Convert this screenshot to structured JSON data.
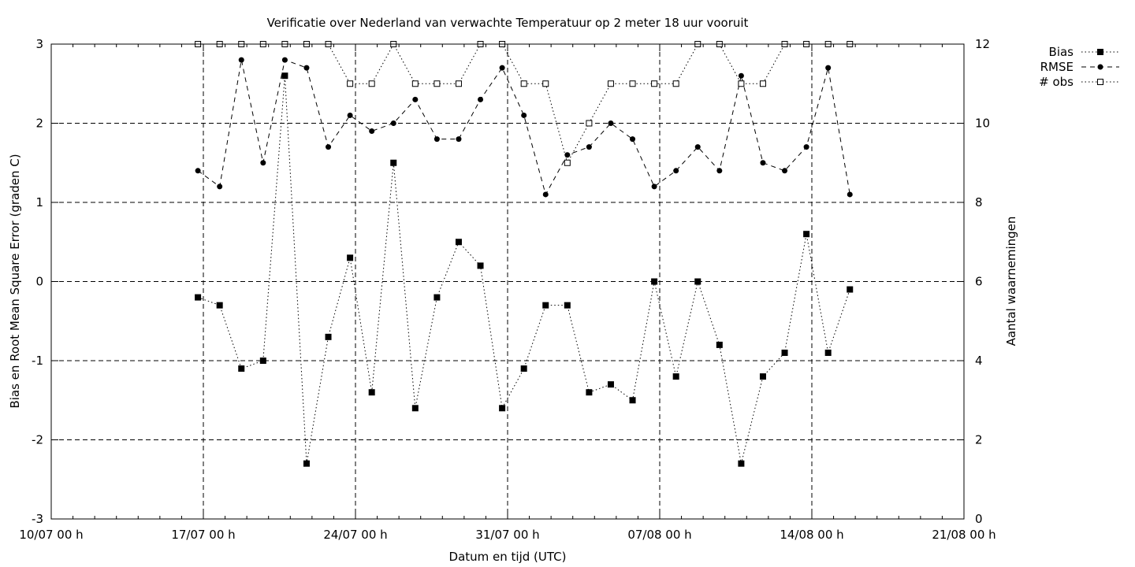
{
  "chart_data": {
    "type": "line",
    "title": "Verificatie over Nederland van verwachte Temperatuur op 2 meter 18 uur vooruit",
    "xlabel": "Datum en tijd (UTC)",
    "ylabel": "Bias en Root Mean Square Error (graden C)",
    "y2label": "Aantal waarnemingen",
    "xlim": [
      "2023-07-10",
      "2023-08-21"
    ],
    "ylim": [
      -3,
      3
    ],
    "y2lim": [
      0,
      12
    ],
    "x_tick_labels": [
      "10/07 00 h",
      "17/07 00 h",
      "24/07 00 h",
      "31/07 00 h",
      "07/08 00 h",
      "14/08 00 h",
      "21/08 00 h"
    ],
    "y_tick_labels": [
      "-3",
      "-2",
      "-1",
      "0",
      "1",
      "2",
      "3"
    ],
    "y2_tick_labels": [
      "0",
      "2",
      "4",
      "6",
      "8",
      "10",
      "12"
    ],
    "grid": true,
    "legend_position": "top-right, outside plot",
    "x": [
      "16/07 18 h",
      "17/07 18 h",
      "18/07 18 h",
      "19/07 18 h",
      "20/07 18 h",
      "21/07 18 h",
      "22/07 18 h",
      "23/07 18 h",
      "24/07 18 h",
      "25/07 18 h",
      "26/07 18 h",
      "27/07 18 h",
      "28/07 18 h",
      "29/07 18 h",
      "30/07 18 h",
      "31/07 18 h",
      "01/08 18 h",
      "02/08 18 h",
      "03/08 18 h",
      "04/08 18 h",
      "05/08 18 h",
      "06/08 18 h",
      "07/08 18 h",
      "08/08 18 h",
      "09/08 18 h",
      "10/08 18 h",
      "11/08 18 h",
      "12/08 18 h",
      "13/08 18 h",
      "14/08 18 h",
      "15/08 18 h"
    ],
    "series": [
      {
        "name": "Bias",
        "axis": "left",
        "style": "dotted line, filled square markers",
        "values": [
          -0.2,
          -0.3,
          -1.1,
          -1.0,
          2.6,
          -2.3,
          -0.7,
          0.3,
          -1.4,
          1.5,
          -1.6,
          -0.2,
          0.5,
          0.2,
          -1.6,
          -1.1,
          -0.3,
          -0.3,
          -1.4,
          -1.3,
          -1.5,
          0.0,
          -1.2,
          0.0,
          -0.8,
          -2.3,
          -1.2,
          -0.9,
          0.6,
          -0.9,
          -0.1
        ]
      },
      {
        "name": "RMSE",
        "axis": "left",
        "style": "dashed line, filled circle markers",
        "values": [
          1.4,
          1.2,
          2.8,
          1.5,
          2.8,
          2.7,
          1.7,
          2.1,
          1.9,
          2.0,
          2.3,
          1.8,
          1.8,
          2.3,
          2.7,
          2.1,
          1.1,
          1.6,
          1.7,
          2.0,
          1.8,
          1.2,
          1.4,
          1.7,
          1.4,
          2.6,
          1.5,
          1.4,
          1.7,
          2.7,
          1.1
        ]
      },
      {
        "name": "# obs",
        "axis": "right",
        "style": "dotted line, open square markers",
        "values": [
          12,
          12,
          12,
          12,
          12,
          12,
          12,
          11,
          11,
          12,
          11,
          11,
          11,
          12,
          12,
          11,
          11,
          9,
          10,
          11,
          11,
          11,
          11,
          12,
          12,
          11,
          11,
          12,
          12,
          12,
          12
        ]
      }
    ]
  }
}
